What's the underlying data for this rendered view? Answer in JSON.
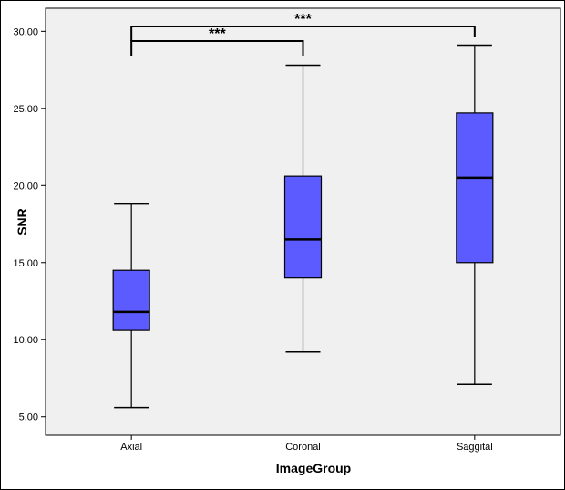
{
  "chart_data": {
    "type": "boxplot",
    "title": "",
    "xlabel": "ImageGroup",
    "ylabel": "SNR",
    "ylim": [
      3.8,
      31.5
    ],
    "yticks": [
      "5.00",
      "10.00",
      "15.00",
      "20.00",
      "25.00",
      "30.00"
    ],
    "categories": [
      "Axial",
      "Coronal",
      "Saggital"
    ],
    "boxes": [
      {
        "category": "Axial",
        "min": 5.6,
        "q1": 10.6,
        "median": 11.8,
        "q3": 14.5,
        "max": 18.8
      },
      {
        "category": "Coronal",
        "min": 9.2,
        "q1": 14.0,
        "median": 16.5,
        "q3": 20.6,
        "max": 27.8
      },
      {
        "category": "Saggital",
        "min": 7.1,
        "q1": 15.0,
        "median": 20.5,
        "q3": 24.7,
        "max": 29.1
      }
    ],
    "significance": [
      {
        "from": "Axial",
        "to": "Coronal",
        "label": "***"
      },
      {
        "from": "Axial",
        "to": "Saggital",
        "label": "***"
      }
    ],
    "grid": false,
    "colors": {
      "box_fill": "#5b5bff",
      "plot_bg": "#f0f0f0",
      "line": "#000000"
    }
  }
}
